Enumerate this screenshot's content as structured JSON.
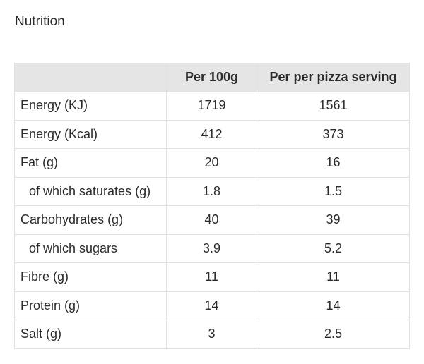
{
  "page_title": "Nutrition",
  "table": {
    "headers": [
      "",
      "Per 100g",
      "Per per pizza serving"
    ],
    "rows": [
      {
        "label": "Energy (KJ)",
        "per_100g": "1719",
        "per_serving": "1561",
        "indent": false
      },
      {
        "label": "Energy (Kcal)",
        "per_100g": "412",
        "per_serving": "373",
        "indent": false
      },
      {
        "label": "Fat (g)",
        "per_100g": "20",
        "per_serving": "16",
        "indent": false
      },
      {
        "label": "of which saturates (g)",
        "per_100g": "1.8",
        "per_serving": "1.5",
        "indent": true
      },
      {
        "label": "Carbohydrates (g)",
        "per_100g": "40",
        "per_serving": "39",
        "indent": false
      },
      {
        "label": "of which sugars",
        "per_100g": "3.9",
        "per_serving": "5.2",
        "indent": true
      },
      {
        "label": "Fibre (g)",
        "per_100g": "11",
        "per_serving": "11",
        "indent": false
      },
      {
        "label": "Protein (g)",
        "per_100g": "14",
        "per_serving": "14",
        "indent": false
      },
      {
        "label": "Salt (g)",
        "per_100g": "3",
        "per_serving": "2.5",
        "indent": false
      }
    ]
  }
}
